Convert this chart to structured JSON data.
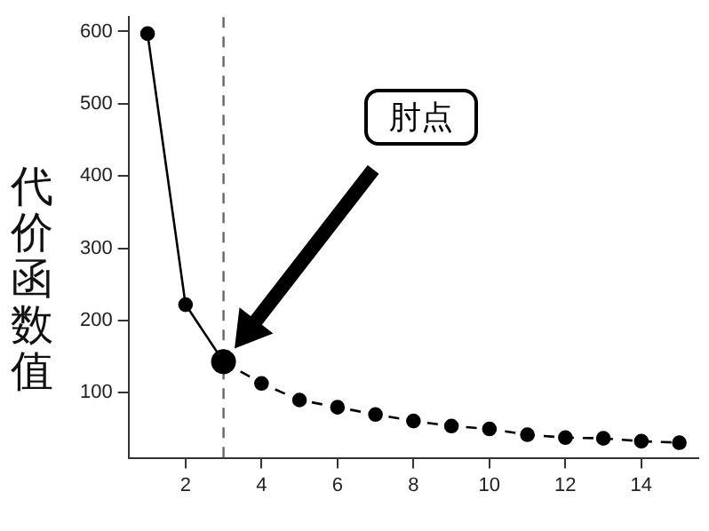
{
  "chart_data": {
    "type": "line",
    "ylabel": "代价函数值",
    "series": [
      {
        "x": [
          1,
          2,
          3
        ],
        "values": [
          597,
          222,
          143
        ],
        "color": "#000000",
        "line_style": "solid"
      },
      {
        "x": [
          3,
          4,
          5,
          6,
          7,
          8,
          9,
          10,
          11,
          12,
          13,
          14,
          15
        ],
        "values": [
          143,
          113,
          90,
          80,
          70,
          61,
          54,
          50,
          42,
          38,
          37,
          33,
          31
        ],
        "color": "#000000",
        "line_style": "dashed"
      }
    ],
    "xlim": [
      0.5,
      15.5
    ],
    "xticks": [
      2,
      4,
      6,
      8,
      10,
      12,
      14
    ],
    "ylim": [
      10,
      620
    ],
    "yticks": [
      100,
      200,
      300,
      400,
      500,
      600
    ],
    "ref_lines": [
      {
        "axis": "x",
        "value": 3,
        "color": "#666666",
        "line_style": "dashed"
      }
    ],
    "annotations": [
      "肘点"
    ],
    "marker": "circle",
    "grid": false,
    "legend": false
  }
}
